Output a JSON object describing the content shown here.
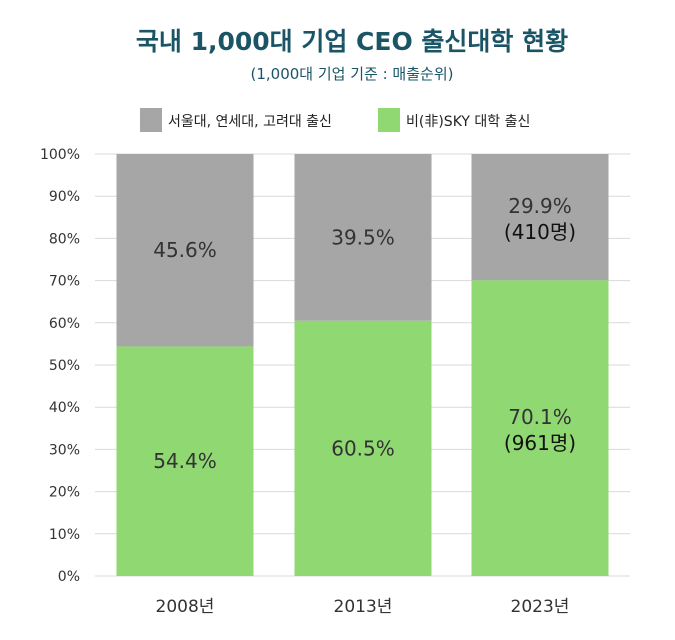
{
  "chart_data": {
    "type": "bar",
    "stacked": true,
    "percent": true,
    "title": "국내 1,000대 기업 CEO 출신대학 현황",
    "subtitle": "(1,000대 기업 기준 : 매출순위)",
    "categories": [
      "2008년",
      "2013년",
      "2023년"
    ],
    "series": [
      {
        "name": "비(非)SKY 대학 출신",
        "color": "#8fd872",
        "values": [
          54.4,
          60.5,
          70.1
        ],
        "labels": [
          "54.4%",
          "60.5%",
          "70.1%"
        ],
        "sublabels": [
          "",
          "",
          "(961명)"
        ]
      },
      {
        "name": "서울대, 연세대, 고려대 출신",
        "color": "#a6a6a6",
        "values": [
          45.6,
          39.5,
          29.9
        ],
        "labels": [
          "45.6%",
          "39.5%",
          "29.9%"
        ],
        "sublabels": [
          "",
          "",
          "(410명)"
        ]
      }
    ],
    "legend_order": [
      1,
      0
    ],
    "ylim": [
      0,
      100
    ],
    "yticks": [
      "0%",
      "10%",
      "20%",
      "30%",
      "40%",
      "50%",
      "60%",
      "70%",
      "80%",
      "90%",
      "100%"
    ],
    "grid": true,
    "legend_position": "top-left"
  }
}
